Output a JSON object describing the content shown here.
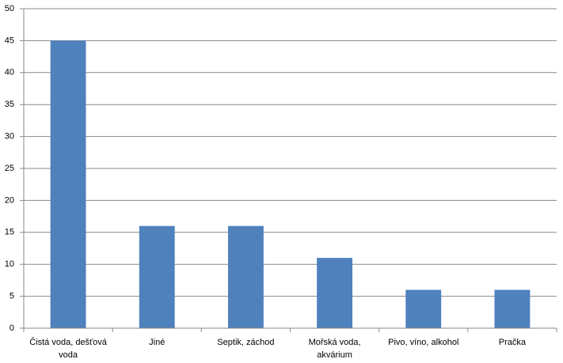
{
  "chart_data": {
    "type": "bar",
    "categories": [
      "Čistá voda, dešťová voda",
      "Jiné",
      "Septik, záchod",
      "Mořská voda, akvárium",
      "Pivo, víno, alkohol",
      "Pračka"
    ],
    "values": [
      45,
      16,
      16,
      11,
      6,
      6
    ],
    "color": "#4f81bd",
    "ylim": [
      0,
      50
    ],
    "yticks": [
      0,
      5,
      10,
      15,
      20,
      25,
      30,
      35,
      40,
      45,
      50
    ],
    "grid": true
  }
}
